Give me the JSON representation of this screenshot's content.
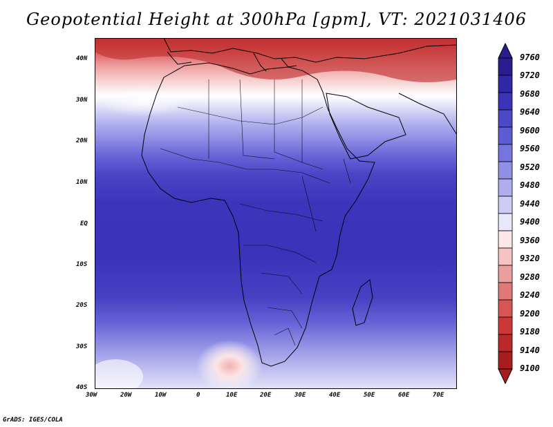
{
  "title": "Geopotential Height at 300hPa [gpm], VT: 2021031406",
  "footer": "GrADS: IGES/COLA",
  "map": {
    "region": "Africa",
    "lat_ticks": [
      "40N",
      "30N",
      "20N",
      "10N",
      "EQ",
      "10S",
      "20S",
      "30S",
      "40S"
    ],
    "lon_ticks": [
      "30W",
      "20W",
      "10W",
      "0",
      "10E",
      "20E",
      "30E",
      "40E",
      "50E",
      "60E",
      "70E"
    ]
  },
  "colorbar": {
    "levels": [
      "9760",
      "9720",
      "9680",
      "9640",
      "9600",
      "9560",
      "9520",
      "9480",
      "9440",
      "9400",
      "9360",
      "9320",
      "9280",
      "9240",
      "9200",
      "9180",
      "9140",
      "9100"
    ],
    "colors": [
      "#2a1d8f",
      "#3028a8",
      "#3b34b8",
      "#4c48c8",
      "#5e5cd4",
      "#7674dd",
      "#918fe5",
      "#aeaded",
      "#cbcbf4",
      "#e8e8fb",
      "#fbe7e7",
      "#f5c3c3",
      "#ec9e9e",
      "#e07878",
      "#d75555",
      "#cc3838",
      "#bb2828",
      "#a61e1e"
    ]
  }
}
